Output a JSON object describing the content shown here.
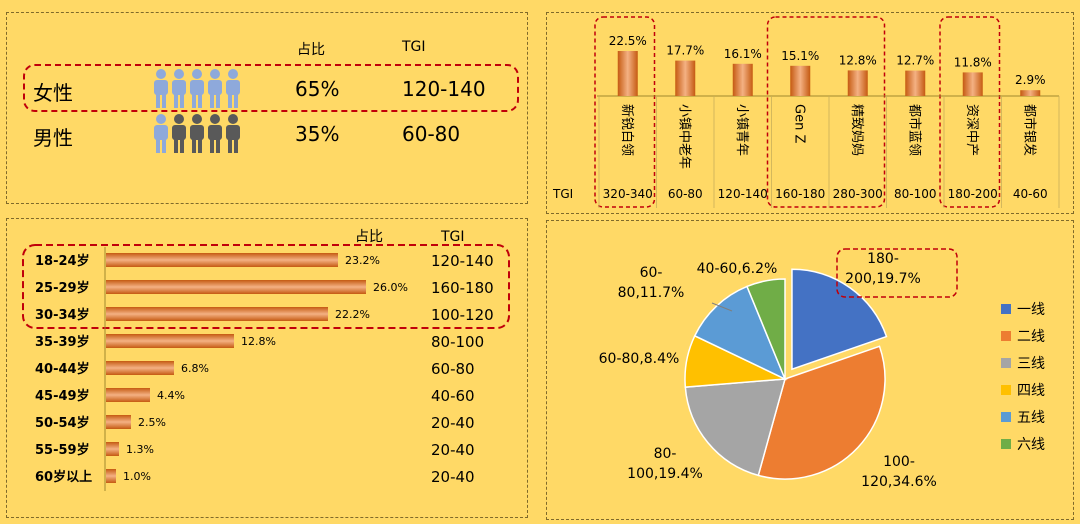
{
  "gender_panel": {
    "header_share": "占比",
    "header_tgi": "TGI",
    "rows": [
      {
        "label": "女性",
        "share": "65%",
        "tgi": "120-140",
        "filled_icons": 5,
        "filled_color": "#8EA9DB"
      },
      {
        "label": "男性",
        "share": "35%",
        "tgi": "60-80",
        "filled_icons": 1,
        "filled_color": "#8EA9DB",
        "other_color": "#595959"
      }
    ]
  },
  "segment_panel": {
    "tgi_label": "TGI",
    "segments": [
      {
        "name": "新锐白领",
        "pct": "22.5%",
        "value": 22.5,
        "tgi": "320-340"
      },
      {
        "name": "小镇中老年",
        "pct": "17.7%",
        "value": 17.7,
        "tgi": "60-80"
      },
      {
        "name": "小镇青年",
        "pct": "16.1%",
        "value": 16.1,
        "tgi": "120-140"
      },
      {
        "name": "Gen Z",
        "pct": "15.1%",
        "value": 15.1,
        "tgi": "160-180"
      },
      {
        "name": "精致妈妈",
        "pct": "12.8%",
        "value": 12.8,
        "tgi": "280-300"
      },
      {
        "name": "都市蓝领",
        "pct": "12.7%",
        "value": 12.7,
        "tgi": "80-100"
      },
      {
        "name": "资深中产",
        "pct": "11.8%",
        "value": 11.8,
        "tgi": "180-200"
      },
      {
        "name": "都市银发",
        "pct": "2.9%",
        "value": 2.9,
        "tgi": "40-60"
      }
    ]
  },
  "age_panel": {
    "header_share": "占比",
    "header_tgi": "TGI",
    "rows": [
      {
        "label": "18-24岁",
        "pct": "23.2%",
        "value": 23.2,
        "tgi": "120-140"
      },
      {
        "label": "25-29岁",
        "pct": "26.0%",
        "value": 26.0,
        "tgi": "160-180"
      },
      {
        "label": "30-34岁",
        "pct": "22.2%",
        "value": 22.2,
        "tgi": "100-120"
      },
      {
        "label": "35-39岁",
        "pct": "12.8%",
        "value": 12.8,
        "tgi": "80-100"
      },
      {
        "label": "40-44岁",
        "pct": "6.8%",
        "value": 6.8,
        "tgi": "60-80"
      },
      {
        "label": "45-49岁",
        "pct": "4.4%",
        "value": 4.4,
        "tgi": "40-60"
      },
      {
        "label": "50-54岁",
        "pct": "2.5%",
        "value": 2.5,
        "tgi": "20-40"
      },
      {
        "label": "55-59岁",
        "pct": "1.3%",
        "value": 1.3,
        "tgi": "20-40"
      },
      {
        "label": "60岁以上",
        "pct": "1.0%",
        "value": 1.0,
        "tgi": "20-40"
      }
    ]
  },
  "chart_data": [
    {
      "type": "bar",
      "categories": [
        "新锐白领",
        "小镇中老年",
        "小镇青年",
        "Gen Z",
        "精致妈妈",
        "都市蓝领",
        "资深中产",
        "都市银发"
      ],
      "values": [
        22.5,
        17.7,
        16.1,
        15.1,
        12.8,
        12.7,
        11.8,
        2.9
      ],
      "data_labels": [
        "22.5%",
        "17.7%",
        "16.1%",
        "15.1%",
        "12.8%",
        "12.7%",
        "11.8%",
        "2.9%"
      ],
      "extra_row": {
        "name": "TGI",
        "values": [
          "320-340",
          "60-80",
          "120-140",
          "160-180",
          "280-300",
          "80-100",
          "180-200",
          "40-60"
        ]
      },
      "title": "",
      "xlabel": "",
      "ylabel": ""
    },
    {
      "type": "bar",
      "orientation": "horizontal",
      "categories": [
        "18-24岁",
        "25-29岁",
        "30-34岁",
        "35-39岁",
        "40-44岁",
        "45-49岁",
        "50-54岁",
        "55-59岁",
        "60岁以上"
      ],
      "values": [
        23.2,
        26.0,
        22.2,
        12.8,
        6.8,
        4.4,
        2.5,
        1.3,
        1.0
      ],
      "data_labels": [
        "23.2%",
        "26.0%",
        "22.2%",
        "12.8%",
        "6.8%",
        "4.4%",
        "2.5%",
        "1.3%",
        "1.0%"
      ],
      "extra_row": {
        "name": "TGI",
        "values": [
          "120-140",
          "160-180",
          "100-120",
          "80-100",
          "60-80",
          "40-60",
          "20-40",
          "20-40",
          "20-40"
        ]
      },
      "title": "",
      "xlabel": "",
      "ylabel": ""
    },
    {
      "type": "pie",
      "slices": [
        {
          "name": "一线",
          "value": 19.7,
          "label_lines": [
            "180-",
            "200,19.7%"
          ],
          "color": "#4472C4",
          "exploded": true
        },
        {
          "name": "二线",
          "value": 34.6,
          "label_lines": [
            "100-",
            "120,34.6%"
          ],
          "color": "#ED7D31"
        },
        {
          "name": "三线",
          "value": 19.4,
          "label_lines": [
            "80-",
            "100,19.4%"
          ],
          "color": "#A5A5A5"
        },
        {
          "name": "四线",
          "value": 8.4,
          "label_lines": [
            "60-80,8.4%"
          ],
          "color": "#FFC000"
        },
        {
          "name": "五线",
          "value": 11.7,
          "label_lines": [
            "60-",
            "80,11.7%"
          ],
          "color": "#5B9BD5"
        },
        {
          "name": "六线",
          "value": 6.2,
          "label_lines": [
            "40-60,6.2%"
          ],
          "color": "#70AD47"
        }
      ],
      "legend_position": "right",
      "title": ""
    }
  ],
  "colors": {
    "background": "#FFD966",
    "bar_dark": "#C55A11",
    "bar_light": "#F4B183",
    "highlight_dash": "#C0000A"
  }
}
